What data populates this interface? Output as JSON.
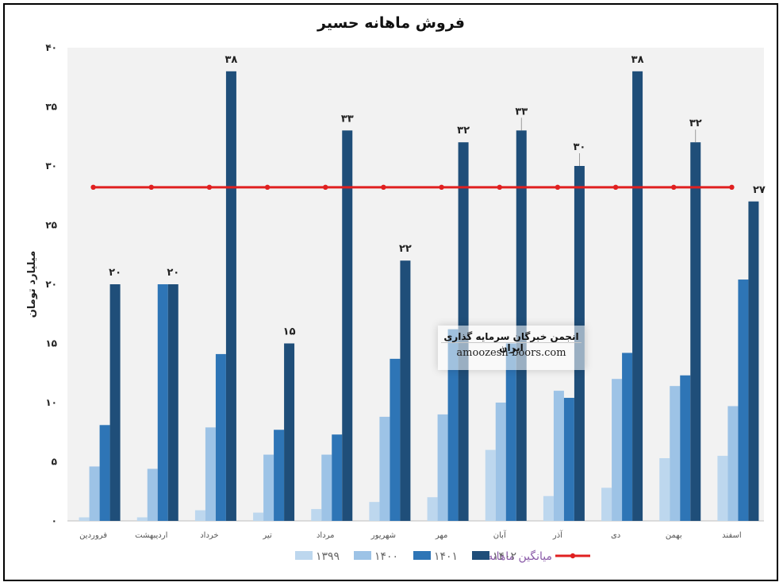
{
  "chart_data": {
    "type": "bar",
    "title": "فروش ماهانه حسیر",
    "ylabel": "میلیارد تومان",
    "xlabel": "",
    "ylim": [
      0,
      40
    ],
    "yticks": [
      "۰",
      "۵",
      "۱۰",
      "۱۵",
      "۲۰",
      "۲۵",
      "۳۰",
      "۳۵",
      "۴۰"
    ],
    "ytick_values": [
      0,
      5,
      10,
      15,
      20,
      25,
      30,
      35,
      40
    ],
    "grid": false,
    "legend_position": "bottom",
    "categories": [
      "فروردین",
      "اردیبهشت",
      "خرداد",
      "تیر",
      "مرداد",
      "شهریور",
      "مهر",
      "آبان",
      "آذر",
      "دی",
      "بهمن",
      "اسفند"
    ],
    "series": [
      {
        "name": "۱۳۹۹",
        "color": "#bdd7ee",
        "values": [
          0.3,
          0.3,
          0.9,
          0.7,
          1.0,
          1.6,
          2.0,
          6.0,
          2.1,
          2.8,
          5.3,
          5.5
        ]
      },
      {
        "name": "۱۴۰۰",
        "color": "#9dc3e6",
        "values": [
          4.6,
          4.4,
          7.9,
          5.6,
          5.6,
          8.8,
          9.0,
          10.0,
          11.0,
          12.0,
          11.4,
          9.7
        ]
      },
      {
        "name": "۱۴۰۱",
        "color": "#2e75b6",
        "values": [
          8.1,
          20.0,
          14.1,
          7.7,
          7.3,
          13.7,
          16.2,
          15.0,
          10.4,
          14.2,
          12.3,
          20.4
        ]
      },
      {
        "name": "۱۴۰۲",
        "color": "#1f4e79",
        "values": [
          20.0,
          20.0,
          38.0,
          15.0,
          33.0,
          22.0,
          32.0,
          33.0,
          30.0,
          38.0,
          32.0,
          27.0
        ],
        "labels": [
          "۲۰",
          "۲۰",
          "۳۸",
          "۱۵",
          "۳۳",
          "۲۲",
          "۳۲",
          "۳۳",
          "۳۰",
          "۳۸",
          "۳۲",
          "۲۷"
        ]
      }
    ],
    "average_line": {
      "name": "میانگین ماهانه",
      "color": "#e02020",
      "value": 28.2
    }
  },
  "watermark": {
    "line1": "انجمن خبرگان سرمایه گذاری ایران",
    "line2": "amoozesh-boors.com"
  }
}
